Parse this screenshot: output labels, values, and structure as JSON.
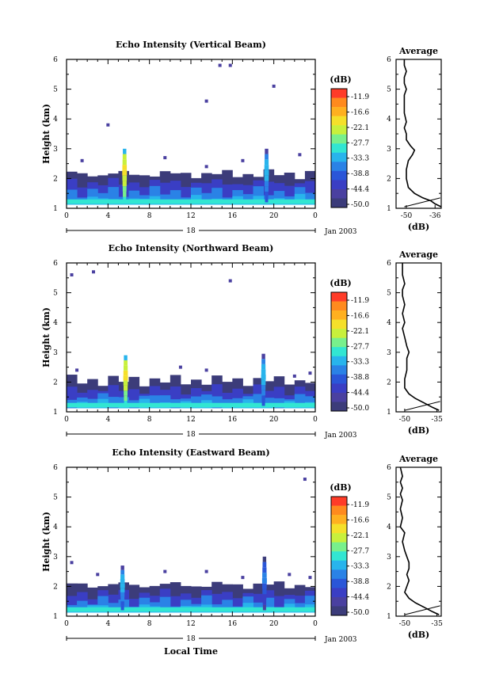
{
  "figure": {
    "xaxis_title": "Local Time",
    "date_label": "Jan 2003",
    "day_label": "18",
    "units_label": "(dB)",
    "avg_title": "Average",
    "avg_xlabel": "(dB)"
  },
  "chart_data": [
    {
      "type": "heatmap",
      "title": "Echo Intensity (Vertical Beam)",
      "ylabel": "Height (km)",
      "xlabel": "",
      "x_ticks": [
        "0",
        "4",
        "8",
        "12",
        "16",
        "20",
        "0"
      ],
      "y_ticks": [
        "1",
        "2",
        "3",
        "4",
        "5",
        "6"
      ],
      "xlim": [
        0,
        24
      ],
      "ylim": [
        1,
        6
      ],
      "colorbar_labels": [
        "-11.9",
        "-16.6",
        "-22.1",
        "-27.7",
        "-33.3",
        "-38.8",
        "-44.4",
        "-50.0"
      ],
      "colorbar_colors": [
        "#ff3c28",
        "#ff8a1e",
        "#ffb020",
        "#f5e02a",
        "#c8f03c",
        "#78f08c",
        "#32e6d2",
        "#28b4ec",
        "#2a82e6",
        "#2a56d8",
        "#3a3ec4",
        "#4a40a0",
        "#3c3c7a"
      ],
      "layers": [
        {
          "y0": 1.15,
          "y1": 1.3,
          "level": -33
        },
        {
          "y0": 1.3,
          "y1": 1.55,
          "level": -39
        },
        {
          "y0": 1.55,
          "y1": 1.85,
          "level": -44
        },
        {
          "y0": 1.85,
          "y1": 2.15,
          "level": -49
        }
      ],
      "plumes": [
        {
          "t": 5.6,
          "ytop": 3.0,
          "peak": -22
        },
        {
          "t": 19.3,
          "ytop": 3.0,
          "peak": -33
        }
      ],
      "specks": [
        [
          14.8,
          5.8
        ],
        [
          15.8,
          5.8
        ],
        [
          20.0,
          5.1
        ],
        [
          13.5,
          4.6
        ],
        [
          4.0,
          3.8
        ],
        [
          9.5,
          2.7
        ],
        [
          13.5,
          2.4
        ],
        [
          17.0,
          2.6
        ],
        [
          22.5,
          2.8
        ],
        [
          1.5,
          2.6
        ]
      ],
      "average": {
        "xlim": [
          -55,
          -33
        ],
        "x_ticks": [
          "-50",
          "-36"
        ],
        "heights": [
          1.05,
          1.15,
          1.25,
          1.35,
          1.5,
          1.7,
          2.0,
          2.3,
          2.6,
          2.8,
          2.95,
          3.1,
          3.3,
          3.5,
          3.7,
          3.9,
          4.2,
          4.5,
          4.8,
          5.0,
          5.2,
          5.4,
          5.6,
          5.8,
          6.0
        ],
        "values": [
          -33,
          -36,
          -38,
          -42,
          -46,
          -49,
          -50,
          -50,
          -49,
          -47,
          -46,
          -48,
          -50,
          -50,
          -51,
          -50,
          -51,
          -51,
          -51,
          -50,
          -51,
          -51,
          -50,
          -51,
          -51
        ]
      }
    },
    {
      "type": "heatmap",
      "title": "Echo Intensity (Northward Beam)",
      "ylabel": "Height (km)",
      "xlabel": "",
      "x_ticks": [
        "0",
        "4",
        "8",
        "12",
        "16",
        "20",
        "0"
      ],
      "y_ticks": [
        "1",
        "2",
        "3",
        "4",
        "5",
        "6"
      ],
      "xlim": [
        0,
        24
      ],
      "ylim": [
        1,
        6
      ],
      "colorbar_labels": [
        "-11.9",
        "-16.6",
        "-22.1",
        "-27.7",
        "-33.3",
        "-38.8",
        "-44.4",
        "-50.0"
      ],
      "colorbar_colors": [
        "#ff3c28",
        "#ff8a1e",
        "#ffb020",
        "#f5e02a",
        "#c8f03c",
        "#78f08c",
        "#32e6d2",
        "#28b4ec",
        "#2a82e6",
        "#2a56d8",
        "#3a3ec4",
        "#4a40a0",
        "#3c3c7a"
      ],
      "layers": [
        {
          "y0": 1.1,
          "y1": 1.25,
          "level": -33
        },
        {
          "y0": 1.25,
          "y1": 1.5,
          "level": -39
        },
        {
          "y0": 1.5,
          "y1": 1.75,
          "level": -44
        },
        {
          "y0": 1.75,
          "y1": 2.05,
          "level": -49
        }
      ],
      "plumes": [
        {
          "t": 5.7,
          "ytop": 2.9,
          "peak": -22
        },
        {
          "t": 19.0,
          "ytop": 2.95,
          "peak": -33
        }
      ],
      "specks": [
        [
          0.5,
          5.6
        ],
        [
          2.6,
          5.7
        ],
        [
          15.8,
          5.4
        ],
        [
          1.0,
          2.4
        ],
        [
          11.0,
          2.5
        ],
        [
          13.5,
          2.4
        ],
        [
          22.0,
          2.2
        ],
        [
          23.5,
          2.3
        ]
      ],
      "average": {
        "xlim": [
          -54,
          -33
        ],
        "x_ticks": [
          "-50",
          "-35"
        ],
        "heights": [
          1.05,
          1.15,
          1.3,
          1.45,
          1.6,
          1.8,
          2.1,
          2.4,
          2.6,
          2.8,
          3.0,
          3.2,
          3.5,
          3.8,
          4.0,
          4.3,
          4.6,
          4.9,
          5.1,
          5.3,
          5.6,
          5.8,
          6.0
        ],
        "values": [
          -34,
          -37,
          -41,
          -45,
          -48,
          -50,
          -50,
          -49,
          -49,
          -49,
          -48,
          -49,
          -50,
          -51,
          -50,
          -51,
          -50,
          -51,
          -51,
          -50,
          -51,
          -51,
          -51
        ]
      }
    },
    {
      "type": "heatmap",
      "title": "Echo Intensity (Eastward Beam)",
      "ylabel": "Height (km)",
      "xlabel": "Local Time",
      "x_ticks": [
        "0",
        "4",
        "8",
        "12",
        "16",
        "20",
        "0"
      ],
      "y_ticks": [
        "1",
        "2",
        "3",
        "4",
        "5",
        "6"
      ],
      "xlim": [
        0,
        24
      ],
      "ylim": [
        1,
        6
      ],
      "colorbar_labels": [
        "-11.9",
        "-16.6",
        "-22.1",
        "-27.7",
        "-33.3",
        "-38.8",
        "-44.4",
        "-50.0"
      ],
      "colorbar_colors": [
        "#ff3c28",
        "#ff8a1e",
        "#ffb020",
        "#f5e02a",
        "#c8f03c",
        "#78f08c",
        "#32e6d2",
        "#28b4ec",
        "#2a82e6",
        "#2a56d8",
        "#3a3ec4",
        "#4a40a0",
        "#3c3c7a"
      ],
      "layers": [
        {
          "y0": 1.15,
          "y1": 1.3,
          "level": -33
        },
        {
          "y0": 1.3,
          "y1": 1.5,
          "level": -39
        },
        {
          "y0": 1.5,
          "y1": 1.75,
          "level": -44
        },
        {
          "y0": 1.75,
          "y1": 2.05,
          "level": -49
        }
      ],
      "plumes": [
        {
          "t": 5.4,
          "ytop": 2.7,
          "peak": -33
        },
        {
          "t": 19.1,
          "ytop": 3.0,
          "peak": -38
        }
      ],
      "specks": [
        [
          23.0,
          5.6
        ],
        [
          0.5,
          2.8
        ],
        [
          3.0,
          2.4
        ],
        [
          9.5,
          2.5
        ],
        [
          13.5,
          2.5
        ],
        [
          17.0,
          2.3
        ],
        [
          21.5,
          2.4
        ],
        [
          23.5,
          2.3
        ]
      ],
      "average": {
        "xlim": [
          -54,
          -33
        ],
        "x_ticks": [
          "-50",
          "-35"
        ],
        "heights": [
          1.05,
          1.15,
          1.3,
          1.45,
          1.6,
          1.8,
          2.0,
          2.2,
          2.4,
          2.6,
          2.8,
          3.0,
          3.2,
          3.5,
          3.8,
          4.0,
          4.3,
          4.6,
          4.9,
          5.1,
          5.3,
          5.5,
          5.7,
          6.0
        ],
        "values": [
          -34,
          -37,
          -41,
          -45,
          -48,
          -50,
          -49,
          -48,
          -49,
          -48,
          -48,
          -49,
          -50,
          -51,
          -50,
          -52,
          -51,
          -52,
          -51,
          -52,
          -51,
          -52,
          -51,
          -52
        ]
      }
    }
  ]
}
